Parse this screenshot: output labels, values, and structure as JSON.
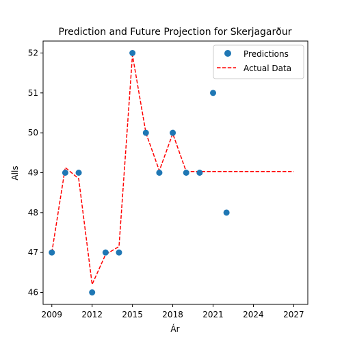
{
  "chart_data": {
    "type": "scatter",
    "title": "Prediction and Future Projection for Skerjagarður",
    "xlabel": "Ár",
    "ylabel": "Alls",
    "xlim": [
      2008.35,
      2028.05
    ],
    "ylim": [
      45.7,
      52.3
    ],
    "xticks": [
      2009,
      2012,
      2015,
      2018,
      2021,
      2024,
      2027
    ],
    "yticks": [
      46,
      47,
      48,
      49,
      50,
      51,
      52
    ],
    "legend_placement": "top-right",
    "grid": false,
    "series": [
      {
        "name": "Predictions",
        "kind": "scatter",
        "color": "#1f77b4",
        "x": [
          2009,
          2010,
          2011,
          2012,
          2013,
          2014,
          2015,
          2016,
          2017,
          2018,
          2019,
          2020,
          2021,
          2022
        ],
        "y": [
          47,
          49,
          49,
          46,
          47,
          47,
          52,
          50,
          49,
          50,
          49,
          49,
          51,
          48
        ]
      },
      {
        "name": "Actual Data",
        "kind": "line",
        "style": "dashed",
        "color": "#ff0000",
        "x": [
          2009,
          2010,
          2011,
          2012,
          2013,
          2014,
          2015,
          2016,
          2017,
          2018,
          2019,
          2020,
          2021,
          2022,
          2023,
          2024,
          2025,
          2026,
          2027
        ],
        "y": [
          47.0,
          49.13,
          48.85,
          46.2,
          46.95,
          47.15,
          51.95,
          50.0,
          49.05,
          49.98,
          49.03,
          49.03,
          49.03,
          49.03,
          49.03,
          49.03,
          49.03,
          49.03,
          49.03
        ]
      }
    ]
  }
}
